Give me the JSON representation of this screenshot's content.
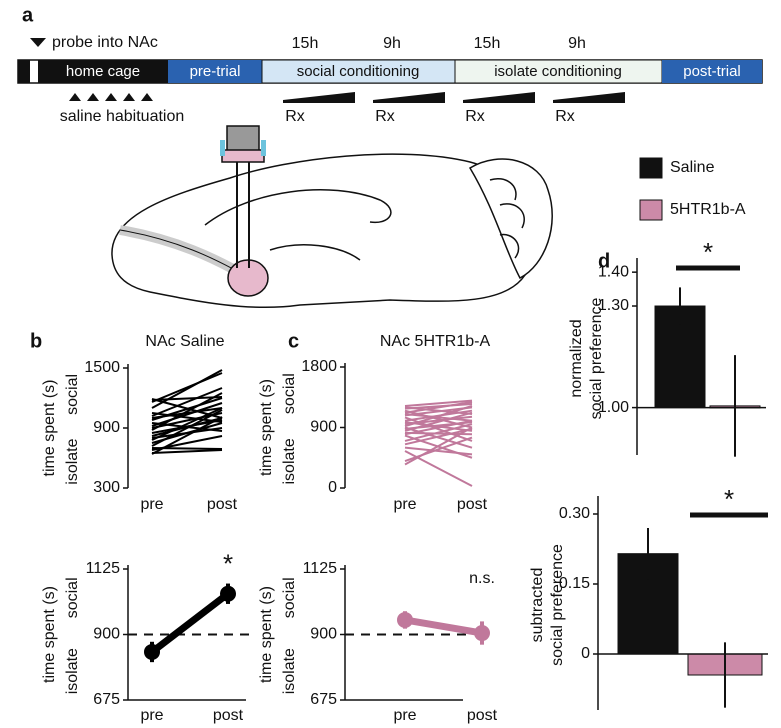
{
  "panel_a": {
    "panel_label": "a",
    "probe": "probe into NAc",
    "intervals": [
      "15h",
      "9h",
      "15h",
      "9h"
    ],
    "segments": [
      "home cage",
      "pre-trial",
      "social conditioning",
      "isolate conditioning",
      "post-trial"
    ],
    "habituation": "saline habituation",
    "injections": [
      "Rx",
      "Rx",
      "Rx",
      "Rx"
    ]
  },
  "chart_data": [
    {
      "type": "line",
      "panel_label": "b",
      "title": "NAc Saline",
      "y_label": "time spent (s)",
      "y_label_top": "social",
      "y_label_bottom": "isolate",
      "categories": [
        "pre",
        "post"
      ],
      "ylim": [
        300,
        1500
      ],
      "yticks": [
        300,
        900,
        1500
      ],
      "color": "#000000",
      "series": [
        {
          "values": [
            1190,
            1000
          ]
        },
        {
          "values": [
            1180,
            1210
          ]
        },
        {
          "values": [
            1160,
            1450
          ]
        },
        {
          "values": [
            1100,
            1480
          ]
        },
        {
          "values": [
            1050,
            960
          ]
        },
        {
          "values": [
            1020,
            1300
          ]
        },
        {
          "values": [
            1000,
            1100
          ]
        },
        {
          "values": [
            980,
            1200
          ]
        },
        {
          "values": [
            950,
            870
          ]
        },
        {
          "values": [
            920,
            1150
          ]
        },
        {
          "values": [
            900,
            1050
          ]
        },
        {
          "values": [
            880,
            1250
          ]
        },
        {
          "values": [
            850,
            980
          ]
        },
        {
          "values": [
            820,
            1000
          ]
        },
        {
          "values": [
            800,
            900
          ]
        },
        {
          "values": [
            780,
            1100
          ]
        },
        {
          "values": [
            750,
            950
          ]
        },
        {
          "values": [
            720,
            1080
          ]
        },
        {
          "values": [
            700,
            690
          ]
        },
        {
          "values": [
            680,
            820
          ]
        },
        {
          "values": [
            650,
            680
          ]
        },
        {
          "values": [
            640,
            1010
          ]
        }
      ]
    },
    {
      "type": "errorline",
      "y_label": "time spent (s)",
      "y_label_top": "social",
      "y_label_bottom": "isolate",
      "categories": [
        "pre",
        "post"
      ],
      "values": [
        840,
        1040
      ],
      "errors": [
        35,
        35
      ],
      "color": "#000000",
      "ylim": [
        675,
        1125
      ],
      "yticks": [
        675,
        900,
        1125
      ],
      "reference_line": 900,
      "annotation": "*"
    },
    {
      "type": "line",
      "panel_label": "c",
      "title": "NAc 5HTR1b-A",
      "y_label": "time spent (s)",
      "y_label_top": "social",
      "y_label_bottom": "isolate",
      "categories": [
        "pre",
        "post"
      ],
      "ylim": [
        0,
        1800
      ],
      "yticks": [
        0,
        900,
        1800
      ],
      "color": "#c0789b",
      "series": [
        {
          "values": [
            1220,
            1300
          ]
        },
        {
          "values": [
            1200,
            1100
          ]
        },
        {
          "values": [
            1180,
            1250
          ]
        },
        {
          "values": [
            1150,
            900
          ]
        },
        {
          "values": [
            1120,
            1280
          ]
        },
        {
          "values": [
            1100,
            1000
          ]
        },
        {
          "values": [
            1080,
            1200
          ]
        },
        {
          "values": [
            1050,
            700
          ]
        },
        {
          "values": [
            1000,
            1150
          ]
        },
        {
          "values": [
            980,
            850
          ]
        },
        {
          "values": [
            950,
            1060
          ]
        },
        {
          "values": [
            920,
            1220
          ]
        },
        {
          "values": [
            900,
            600
          ]
        },
        {
          "values": [
            880,
            980
          ]
        },
        {
          "values": [
            850,
            1120
          ]
        },
        {
          "values": [
            820,
            800
          ]
        },
        {
          "values": [
            800,
            1000
          ]
        },
        {
          "values": [
            780,
            450
          ]
        },
        {
          "values": [
            700,
            950
          ]
        },
        {
          "values": [
            650,
            880
          ]
        },
        {
          "values": [
            600,
            500
          ]
        },
        {
          "values": [
            550,
            30
          ]
        },
        {
          "values": [
            400,
            750
          ]
        },
        {
          "values": [
            350,
            900
          ]
        }
      ]
    },
    {
      "type": "errorline",
      "y_label": "time spent (s)",
      "y_label_top": "social",
      "y_label_bottom": "isolate",
      "categories": [
        "pre",
        "post"
      ],
      "values": [
        950,
        905
      ],
      "errors": [
        30,
        40
      ],
      "color": "#c0789b",
      "ylim": [
        675,
        1125
      ],
      "yticks": [
        675,
        900,
        1125
      ],
      "reference_line": 900,
      "annotation": "n.s."
    },
    {
      "type": "bar",
      "panel_label": "d",
      "y_label": [
        "normalized",
        "social preference"
      ],
      "ylim": [
        0.86,
        1.43
      ],
      "yticks": [
        {
          "value": 1.0,
          "label": "1.00"
        },
        {
          "value": 1.3,
          "label": "1.30"
        },
        {
          "value": 1.4,
          "label": "1.40"
        }
      ],
      "baseline": 1.0,
      "annotation": "*",
      "series": [
        {
          "name": "Saline",
          "color": "#111111",
          "values": [
            1.3
          ],
          "errors": [
            0.055
          ]
        },
        {
          "name": "5HTR1b-A",
          "color": "#cc8aa8",
          "values": [
            1.005
          ],
          "errors": [
            0.15
          ]
        }
      ]
    },
    {
      "type": "bar",
      "y_label": [
        "subtracted",
        "social preference"
      ],
      "ylim": [
        -0.12,
        0.33
      ],
      "yticks": [
        0,
        0.15,
        {
          "value": 0.3,
          "label": "0.30"
        }
      ],
      "baseline": 0,
      "annotation": "*",
      "series": [
        {
          "color": "#111111",
          "values": [
            0.215
          ],
          "errors": [
            0.055
          ]
        },
        {
          "color": "#cc8aa8",
          "values": [
            -0.045
          ],
          "errors": [
            0.07
          ]
        }
      ]
    }
  ]
}
